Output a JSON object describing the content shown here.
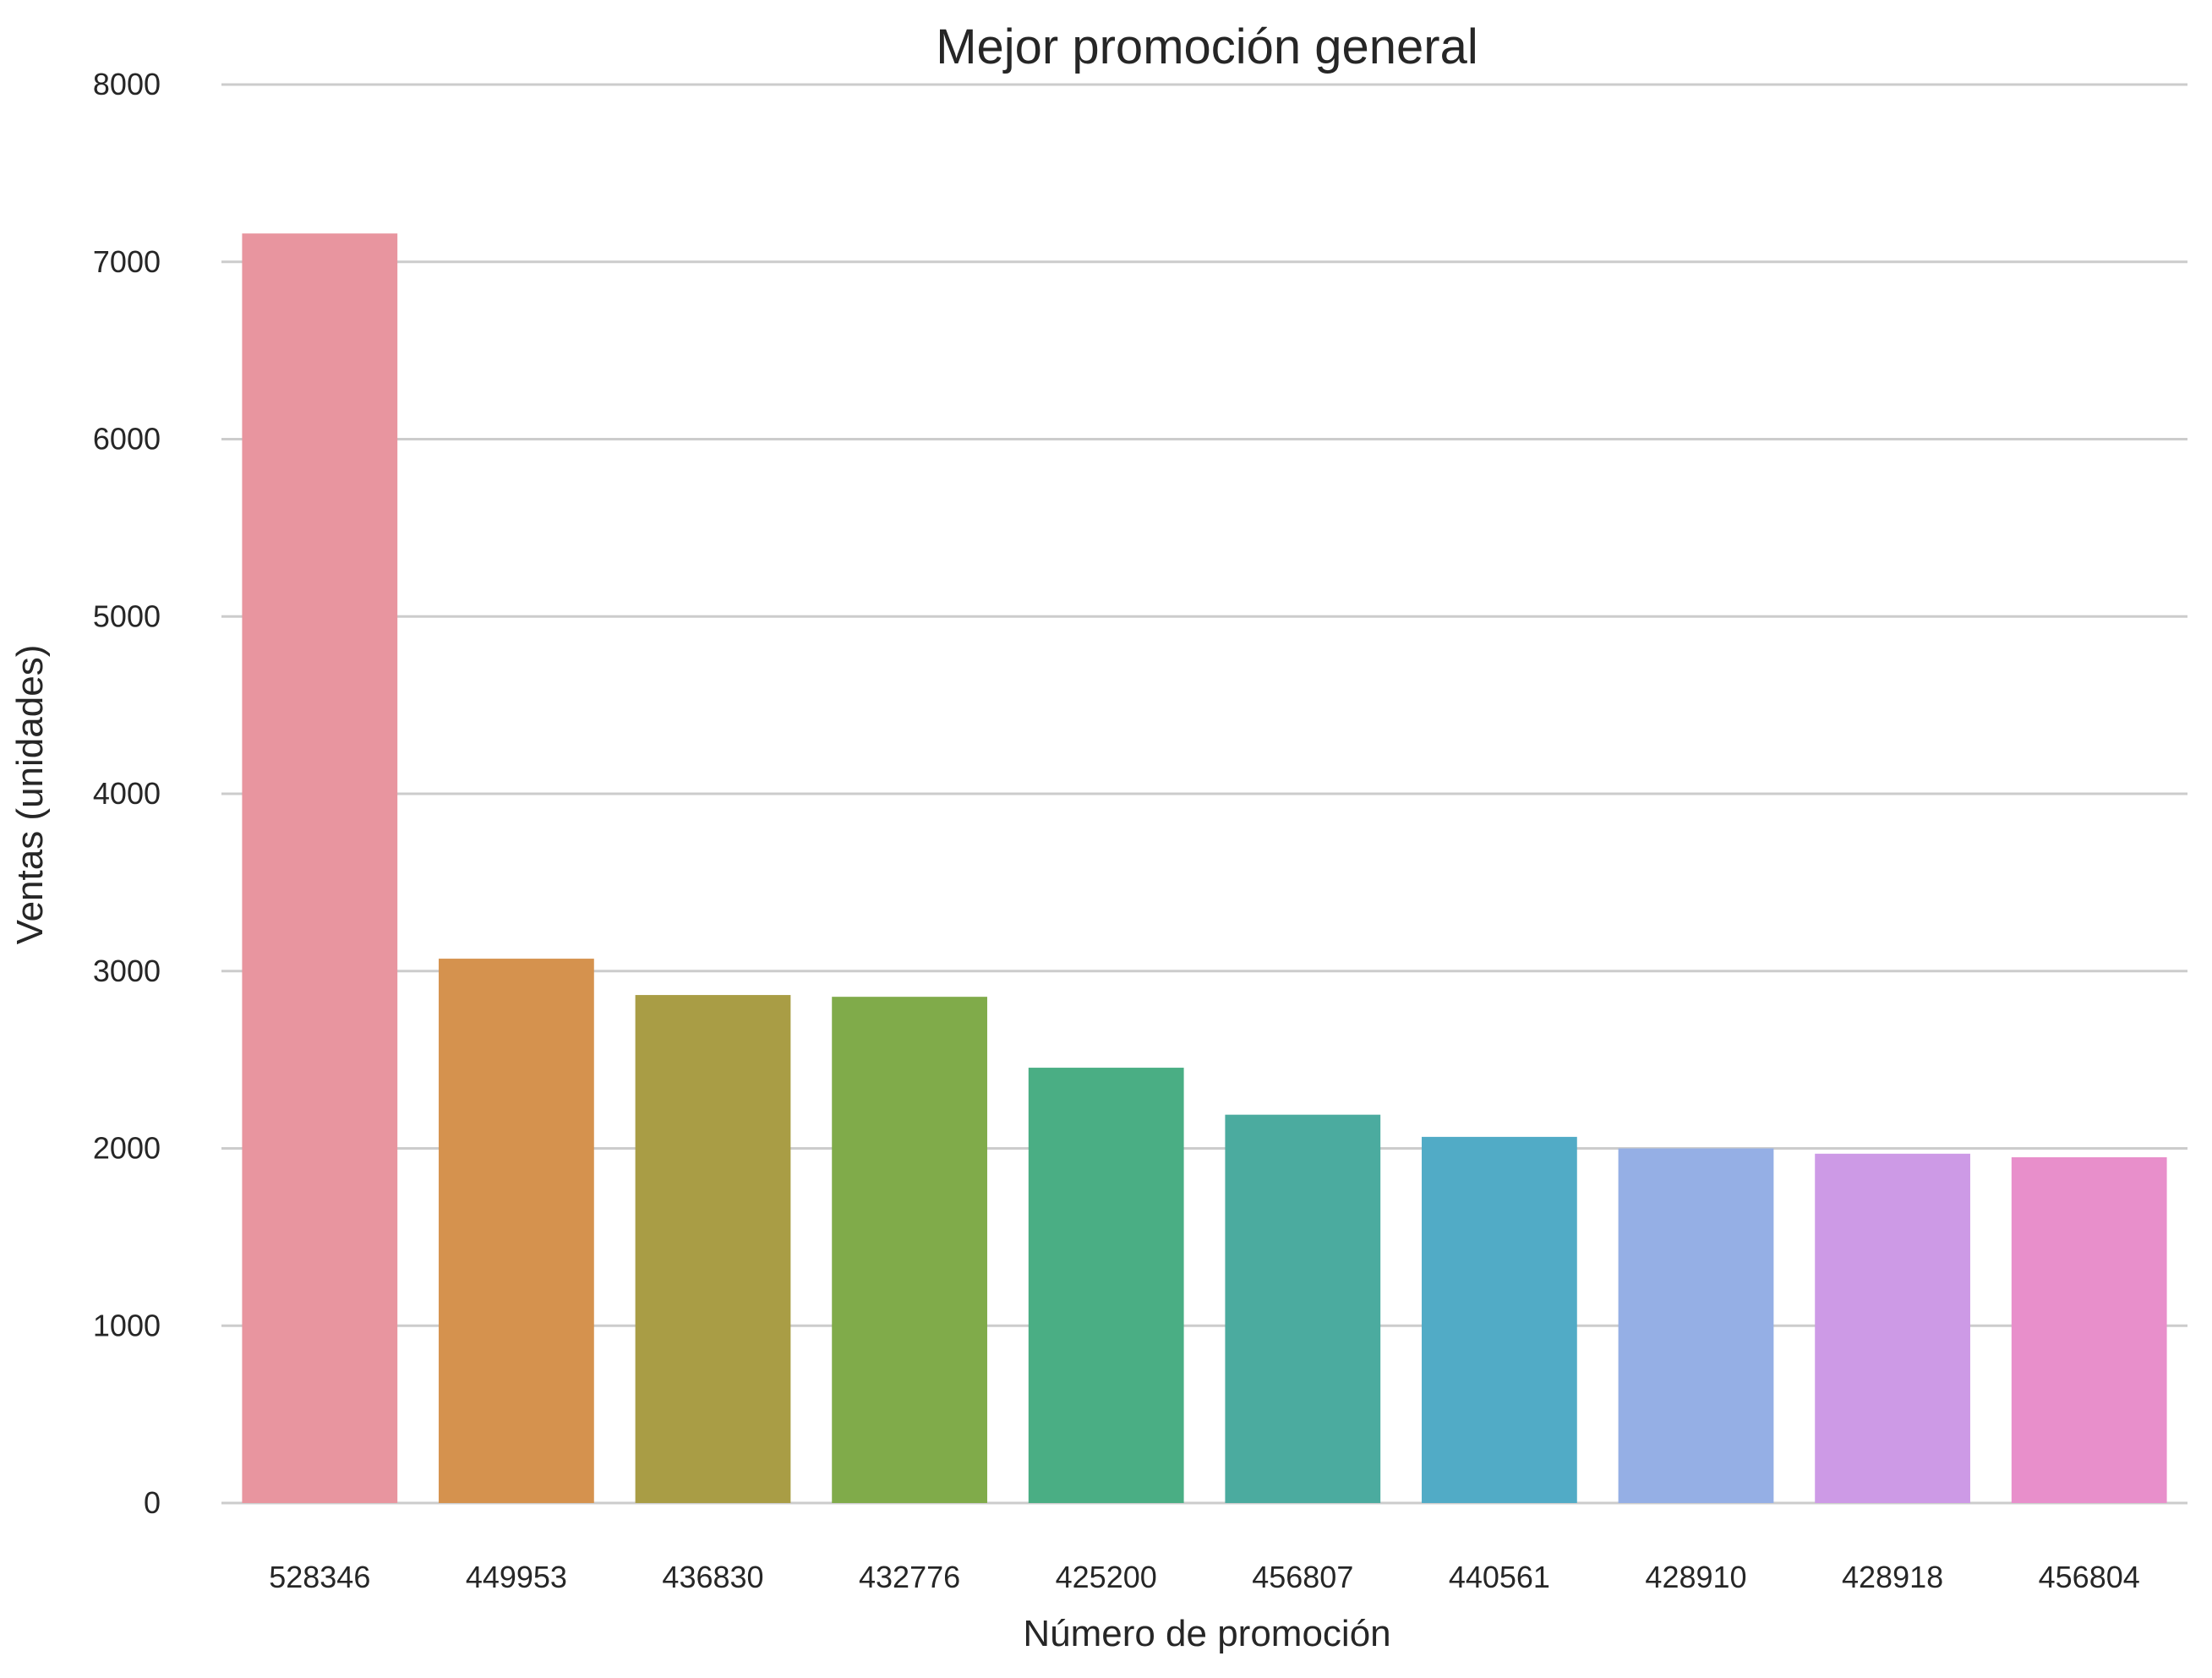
{
  "chart_data": {
    "type": "bar",
    "title": "Mejor promoción general",
    "xlabel": "Número de promoción",
    "ylabel": "Ventas (unidades)",
    "categories": [
      "528346",
      "449953",
      "436830",
      "432776",
      "425200",
      "456807",
      "440561",
      "428910",
      "428918",
      "456804"
    ],
    "values": [
      7160,
      3070,
      2865,
      2855,
      2455,
      2190,
      2065,
      2000,
      1970,
      1950
    ],
    "colors": [
      "#e8959f",
      "#d5924e",
      "#a99d45",
      "#80ab4a",
      "#4aae84",
      "#4bab9f",
      "#51abc6",
      "#95afe5",
      "#cd9ae6",
      "#e88fcb"
    ],
    "ylim": [
      0,
      8000
    ],
    "yticks": [
      "0",
      "1000",
      "2000",
      "3000",
      "4000",
      "5000",
      "6000",
      "7000",
      "8000"
    ],
    "grid": true,
    "legend": "none"
  }
}
